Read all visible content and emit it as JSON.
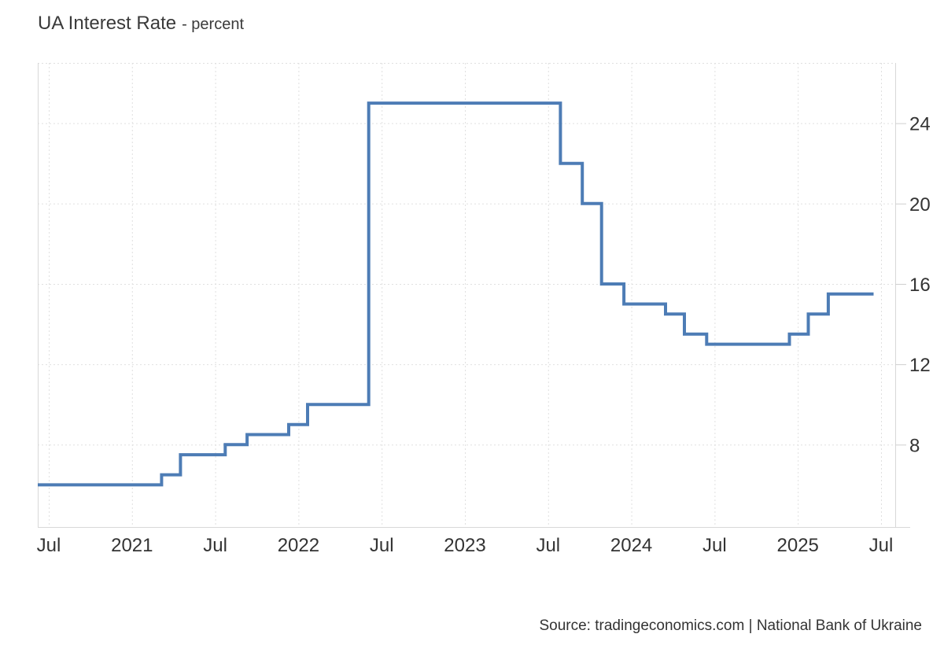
{
  "title": {
    "main": "UA Interest Rate",
    "sub": "- percent"
  },
  "source": "Source: tradingeconomics.com | National Bank of Ukraine",
  "colors": {
    "line": "#4d7cb5",
    "grid": "#e0e0e0",
    "border": "#d8d8d8",
    "tick": "#cfcfcf",
    "text": "#333333",
    "background": "#ffffff"
  },
  "chart_data": {
    "type": "line",
    "subtype": "step-after",
    "title": "UA Interest Rate",
    "ylabel": "percent",
    "xlabel": "",
    "legend": "none",
    "grid": "dashed",
    "y_axis_side": "right",
    "ylim": [
      3.9,
      27.0
    ],
    "y_ticks": [
      24,
      20,
      16,
      12,
      8
    ],
    "x_range_months": [
      0,
      61
    ],
    "x_ticks": [
      {
        "label": "Jul",
        "month": 0
      },
      {
        "label": "2021",
        "month": 6
      },
      {
        "label": "Jul",
        "month": 12
      },
      {
        "label": "2022",
        "month": 18
      },
      {
        "label": "Jul",
        "month": 24
      },
      {
        "label": "2023",
        "month": 30
      },
      {
        "label": "Jul",
        "month": 36
      },
      {
        "label": "2024",
        "month": 42
      },
      {
        "label": "Jul",
        "month": 48
      },
      {
        "label": "2025",
        "month": 54
      },
      {
        "label": "Jul",
        "month": 60
      }
    ],
    "series": [
      {
        "name": "UA Interest Rate",
        "unit": "percent",
        "steps": [
          {
            "date": "2020-06-12",
            "value": 6
          },
          {
            "date": "2021-03-05",
            "value": 6.5
          },
          {
            "date": "2021-04-16",
            "value": 7.5
          },
          {
            "date": "2021-07-23",
            "value": 8
          },
          {
            "date": "2021-09-10",
            "value": 8.5
          },
          {
            "date": "2021-12-10",
            "value": 9
          },
          {
            "date": "2022-01-21",
            "value": 10
          },
          {
            "date": "2022-06-03",
            "value": 25
          },
          {
            "date": "2023-07-28",
            "value": 22
          },
          {
            "date": "2023-09-15",
            "value": 20
          },
          {
            "date": "2023-10-27",
            "value": 16
          },
          {
            "date": "2023-12-15",
            "value": 15
          },
          {
            "date": "2024-03-15",
            "value": 14.5
          },
          {
            "date": "2024-04-26",
            "value": 13.5
          },
          {
            "date": "2024-06-14",
            "value": 13
          },
          {
            "date": "2024-12-13",
            "value": 13.5
          },
          {
            "date": "2025-01-24",
            "value": 14.5
          },
          {
            "date": "2025-03-07",
            "value": 15.5
          }
        ],
        "end_date": "2025-06-15"
      }
    ]
  }
}
